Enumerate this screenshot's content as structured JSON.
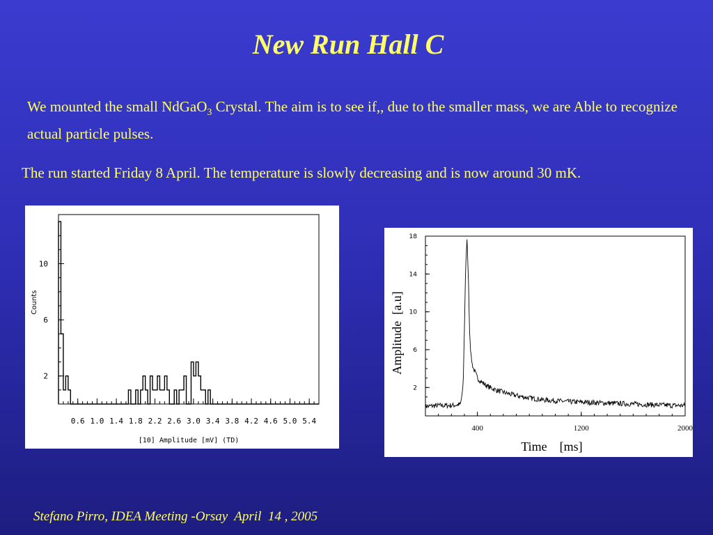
{
  "slide": {
    "title": "New Run Hall C",
    "para1_a": "We mounted the small NdGaO",
    "para1_sub": "3",
    "para1_b": " Crystal. The aim is to see if,, due to the smaller mass, we are Able to recognize actual particle pulses.",
    "para2": "The run started Friday 8 April. The temperature is slowly decreasing and is now around 30 mK.",
    "footer": "Stefano Pirro, IDEA Meeting -Orsay  April  14 , 2005"
  },
  "chart_data": [
    {
      "type": "bar",
      "style": "step-histogram",
      "xlabel": "[10] Amplitude [mV] (TD)",
      "ylabel": "Counts",
      "xlim": [
        0.2,
        5.6
      ],
      "ylim": [
        0,
        13.5
      ],
      "xticks": [
        "0.6",
        "1.0",
        "1.4",
        "1.8",
        "2.2",
        "2.6",
        "3.0",
        "3.4",
        "3.8",
        "4.2",
        "4.6",
        "5.0",
        "5.4"
      ],
      "yticks": [
        "2",
        "6",
        "10"
      ],
      "bin_width": 0.05,
      "counts": [
        {
          "x": 0.225,
          "y": 13
        },
        {
          "x": 0.275,
          "y": 5
        },
        {
          "x": 0.325,
          "y": 1
        },
        {
          "x": 0.375,
          "y": 2
        },
        {
          "x": 0.425,
          "y": 1
        },
        {
          "x": 1.675,
          "y": 1
        },
        {
          "x": 1.825,
          "y": 1
        },
        {
          "x": 1.925,
          "y": 1
        },
        {
          "x": 1.975,
          "y": 2
        },
        {
          "x": 2.025,
          "y": 1
        },
        {
          "x": 2.125,
          "y": 2
        },
        {
          "x": 2.175,
          "y": 1
        },
        {
          "x": 2.225,
          "y": 1
        },
        {
          "x": 2.275,
          "y": 2
        },
        {
          "x": 2.325,
          "y": 1
        },
        {
          "x": 2.375,
          "y": 1
        },
        {
          "x": 2.425,
          "y": 2
        },
        {
          "x": 2.475,
          "y": 1
        },
        {
          "x": 2.625,
          "y": 1
        },
        {
          "x": 2.725,
          "y": 1
        },
        {
          "x": 2.775,
          "y": 1
        },
        {
          "x": 2.825,
          "y": 2
        },
        {
          "x": 2.975,
          "y": 3
        },
        {
          "x": 3.025,
          "y": 2
        },
        {
          "x": 3.075,
          "y": 3
        },
        {
          "x": 3.125,
          "y": 2
        },
        {
          "x": 3.175,
          "y": 1
        },
        {
          "x": 3.225,
          "y": 1
        },
        {
          "x": 3.325,
          "y": 1
        }
      ]
    },
    {
      "type": "line",
      "xlabel": "Time    [ms]",
      "ylabel": "Amplitude  [a.u]",
      "xlim": [
        0,
        2000
      ],
      "ylim": [
        -1,
        18
      ],
      "xticks": [
        "400",
        "1200",
        "2000"
      ],
      "yticks": [
        "2",
        "6",
        "10",
        "14",
        "18"
      ],
      "series": [
        {
          "x": [
            0,
            100,
            200,
            270,
            290,
            300,
            310,
            320,
            330,
            340,
            350,
            360,
            370,
            380,
            400,
            430,
            480,
            550,
            650,
            750,
            900,
            1100,
            1300,
            1500,
            1700,
            1900,
            2000
          ],
          "y": [
            0,
            0.1,
            0.1,
            0.2,
            2,
            8,
            15,
            17.5,
            14,
            8,
            5.5,
            4.5,
            4,
            3.7,
            3,
            2.6,
            2.1,
            1.7,
            1.3,
            1.0,
            0.7,
            0.5,
            0.4,
            0.3,
            0.2,
            0.1,
            0.1
          ]
        }
      ]
    }
  ]
}
